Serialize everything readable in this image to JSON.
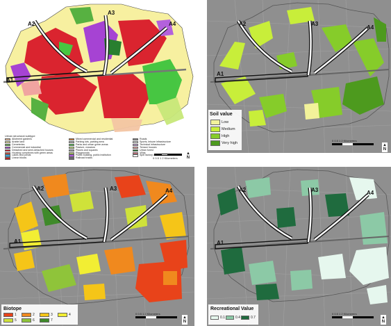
{
  "transects": [
    "A1",
    "A2",
    "A3",
    "A4"
  ],
  "panel1": {
    "legend_title": "Urban structural subtype",
    "legend_items": [
      {
        "label": "Allotment gardens",
        "color": "#f4c6a4"
      },
      {
        "label": "Arable land",
        "color": "#f7f0a0"
      },
      {
        "label": "Cemeteries",
        "color": "#4fae3c"
      },
      {
        "label": "Commercial and industrial",
        "color": "#a23ad6"
      },
      {
        "label": "Detached and semi-detached houses",
        "color": "#d91a2a"
      },
      {
        "label": "Housing complexes with green areas",
        "color": "#e8402a"
      },
      {
        "label": "Lakes and ponds",
        "color": "#3aa3e0"
      },
      {
        "label": "Linear blocks",
        "color": "#b52222"
      },
      {
        "label": "Mixed commercial and residential",
        "color": "#d97a2a"
      },
      {
        "label": "Parking lots, parking area",
        "color": "#bbbbbb"
      },
      {
        "label": "Parks and urban green areas",
        "color": "#3ec43e"
      },
      {
        "label": "Pasture, meadow",
        "color": "#c8e87a"
      },
      {
        "label": "Places and squares",
        "color": "#9a9a9a"
      },
      {
        "label": "Playgrounds",
        "color": "#c0e060"
      },
      {
        "label": "Public building, public institution",
        "color": "#b05ae0"
      },
      {
        "label": "Railroad tracks",
        "color": "#6a6a6a"
      },
      {
        "label": "Roads",
        "color": "#8a8a8a"
      },
      {
        "label": "Sports, leisure infrastructure",
        "color": "#e0e0e0"
      },
      {
        "label": "Technical infrastructure",
        "color": "#c59ad8"
      },
      {
        "label": "Terrace houses",
        "color": "#f0a0a0"
      },
      {
        "label": "Urban forest",
        "color": "#1e7a2a"
      },
      {
        "label": "Villas",
        "color": "#e86a7a"
      },
      {
        "label": "Spel factory area",
        "color": "#ffffff"
      }
    ],
    "scale_label": "0   0.5  1        2 Kilometers"
  },
  "panel2": {
    "legend_title": "Soil value",
    "legend_items": [
      {
        "label": "Low",
        "color": "#f2f29a"
      },
      {
        "label": "Medium",
        "color": "#c8ee3a"
      },
      {
        "label": "High",
        "color": "#86cc2a"
      },
      {
        "label": "Very high",
        "color": "#4d9a1e"
      }
    ],
    "scale_label": "0  0.5  1       2 Kilometers"
  },
  "panel3": {
    "legend_title": "Biotope",
    "legend_items": [
      {
        "label": "1",
        "color": "#e8431a"
      },
      {
        "label": "2",
        "color": "#f0891e"
      },
      {
        "label": "3",
        "color": "#f5c518"
      },
      {
        "label": "4",
        "color": "#f2ee33"
      },
      {
        "label": "5",
        "color": "#cfe23a"
      },
      {
        "label": "6",
        "color": "#8fc43a"
      },
      {
        "label": "7",
        "color": "#3f8a2a"
      }
    ],
    "scale_label": "0  0.5  1       2 Kilometers"
  },
  "panel4": {
    "legend_title": "Recreational Value",
    "legend_items": [
      {
        "label": "0.1",
        "color": "#e6f7ee"
      },
      {
        "label": "0.4",
        "color": "#8cc9a6"
      },
      {
        "label": "0.7",
        "color": "#1f6b3e"
      }
    ],
    "scale_label": "0  0.5  1       2 Kilometers"
  },
  "north_label": "N"
}
